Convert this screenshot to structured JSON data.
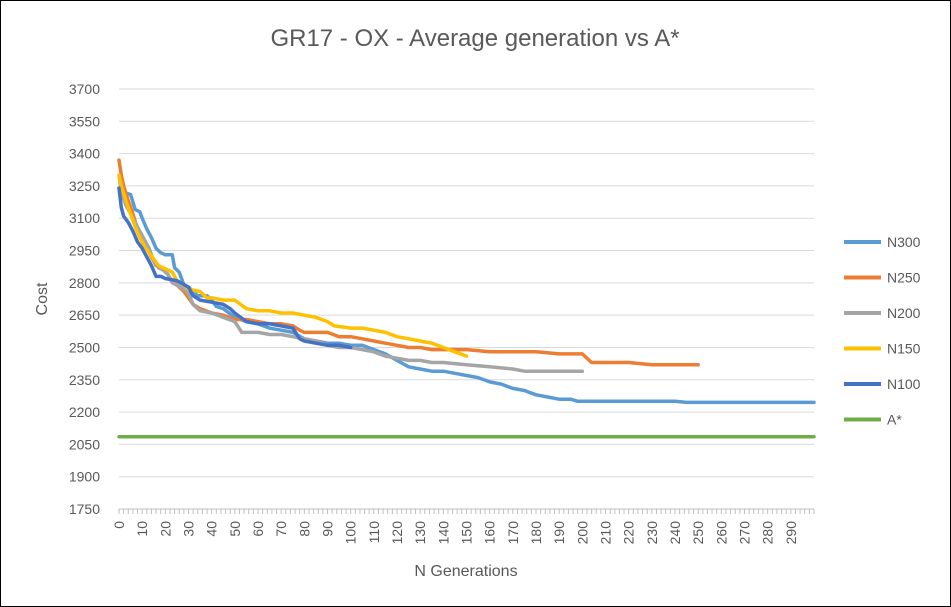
{
  "chart_data": {
    "type": "line",
    "title": "GR17 - OX - Average generation vs A*",
    "xlabel": "N Generations",
    "ylabel": "Cost",
    "xlim": [
      0,
      300
    ],
    "ylim": [
      1750,
      3700
    ],
    "y_ticks": [
      1750,
      1900,
      2050,
      2200,
      2350,
      2500,
      2650,
      2800,
      2950,
      3100,
      3250,
      3400,
      3550,
      3700
    ],
    "x_ticks": [
      0,
      10,
      20,
      30,
      40,
      50,
      60,
      70,
      80,
      90,
      100,
      110,
      120,
      130,
      140,
      150,
      160,
      170,
      180,
      190,
      200,
      210,
      220,
      230,
      240,
      250,
      260,
      270,
      280,
      290
    ],
    "grid": true,
    "legend_position": "right",
    "series": [
      {
        "name": "N300",
        "color": "#5B9BD5",
        "points": [
          [
            0,
            3240
          ],
          [
            2,
            3220
          ],
          [
            5,
            3210
          ],
          [
            7,
            3140
          ],
          [
            9,
            3130
          ],
          [
            10,
            3100
          ],
          [
            12,
            3050
          ],
          [
            14,
            3010
          ],
          [
            16,
            2960
          ],
          [
            18,
            2940
          ],
          [
            20,
            2930
          ],
          [
            23,
            2930
          ],
          [
            24,
            2870
          ],
          [
            26,
            2850
          ],
          [
            28,
            2790
          ],
          [
            30,
            2780
          ],
          [
            32,
            2760
          ],
          [
            34,
            2740
          ],
          [
            38,
            2740
          ],
          [
            40,
            2720
          ],
          [
            42,
            2690
          ],
          [
            45,
            2680
          ],
          [
            50,
            2640
          ],
          [
            55,
            2620
          ],
          [
            60,
            2610
          ],
          [
            65,
            2590
          ],
          [
            70,
            2580
          ],
          [
            75,
            2570
          ],
          [
            80,
            2540
          ],
          [
            85,
            2530
          ],
          [
            90,
            2520
          ],
          [
            95,
            2520
          ],
          [
            100,
            2510
          ],
          [
            105,
            2510
          ],
          [
            110,
            2490
          ],
          [
            115,
            2470
          ],
          [
            120,
            2440
          ],
          [
            125,
            2410
          ],
          [
            130,
            2400
          ],
          [
            135,
            2390
          ],
          [
            140,
            2390
          ],
          [
            145,
            2380
          ],
          [
            150,
            2370
          ],
          [
            155,
            2360
          ],
          [
            160,
            2340
          ],
          [
            165,
            2330
          ],
          [
            170,
            2310
          ],
          [
            175,
            2300
          ],
          [
            180,
            2280
          ],
          [
            185,
            2270
          ],
          [
            190,
            2260
          ],
          [
            195,
            2260
          ],
          [
            198,
            2250
          ],
          [
            200,
            2250
          ],
          [
            220,
            2250
          ],
          [
            240,
            2250
          ],
          [
            245,
            2245
          ],
          [
            260,
            2245
          ],
          [
            280,
            2245
          ],
          [
            300,
            2245
          ]
        ]
      },
      {
        "name": "N250",
        "color": "#ED7D31",
        "points": [
          [
            0,
            3370
          ],
          [
            1,
            3300
          ],
          [
            2,
            3250
          ],
          [
            4,
            3180
          ],
          [
            6,
            3120
          ],
          [
            8,
            3050
          ],
          [
            10,
            3000
          ],
          [
            12,
            2960
          ],
          [
            14,
            2920
          ],
          [
            16,
            2880
          ],
          [
            18,
            2870
          ],
          [
            20,
            2860
          ],
          [
            22,
            2820
          ],
          [
            24,
            2800
          ],
          [
            26,
            2780
          ],
          [
            28,
            2760
          ],
          [
            30,
            2730
          ],
          [
            32,
            2700
          ],
          [
            35,
            2680
          ],
          [
            40,
            2660
          ],
          [
            45,
            2650
          ],
          [
            50,
            2630
          ],
          [
            55,
            2630
          ],
          [
            60,
            2620
          ],
          [
            65,
            2610
          ],
          [
            70,
            2610
          ],
          [
            75,
            2600
          ],
          [
            78,
            2580
          ],
          [
            80,
            2570
          ],
          [
            90,
            2570
          ],
          [
            95,
            2550
          ],
          [
            100,
            2550
          ],
          [
            105,
            2540
          ],
          [
            110,
            2530
          ],
          [
            115,
            2520
          ],
          [
            120,
            2510
          ],
          [
            125,
            2500
          ],
          [
            130,
            2500
          ],
          [
            135,
            2490
          ],
          [
            140,
            2490
          ],
          [
            150,
            2490
          ],
          [
            160,
            2480
          ],
          [
            170,
            2480
          ],
          [
            180,
            2480
          ],
          [
            190,
            2470
          ],
          [
            200,
            2470
          ],
          [
            204,
            2430
          ],
          [
            210,
            2430
          ],
          [
            220,
            2430
          ],
          [
            230,
            2420
          ],
          [
            240,
            2420
          ],
          [
            250,
            2420
          ]
        ]
      },
      {
        "name": "N200",
        "color": "#A5A5A5",
        "points": [
          [
            0,
            3300
          ],
          [
            1,
            3220
          ],
          [
            3,
            3160
          ],
          [
            5,
            3120
          ],
          [
            7,
            3080
          ],
          [
            9,
            3040
          ],
          [
            11,
            3000
          ],
          [
            13,
            2960
          ],
          [
            15,
            2900
          ],
          [
            17,
            2870
          ],
          [
            19,
            2860
          ],
          [
            21,
            2840
          ],
          [
            23,
            2800
          ],
          [
            25,
            2790
          ],
          [
            28,
            2770
          ],
          [
            30,
            2750
          ],
          [
            32,
            2700
          ],
          [
            35,
            2670
          ],
          [
            40,
            2660
          ],
          [
            45,
            2640
          ],
          [
            50,
            2620
          ],
          [
            53,
            2570
          ],
          [
            60,
            2570
          ],
          [
            65,
            2560
          ],
          [
            70,
            2560
          ],
          [
            75,
            2550
          ],
          [
            80,
            2540
          ],
          [
            85,
            2530
          ],
          [
            90,
            2510
          ],
          [
            95,
            2500
          ],
          [
            100,
            2500
          ],
          [
            105,
            2490
          ],
          [
            110,
            2480
          ],
          [
            115,
            2460
          ],
          [
            120,
            2450
          ],
          [
            125,
            2440
          ],
          [
            130,
            2440
          ],
          [
            135,
            2430
          ],
          [
            140,
            2430
          ],
          [
            150,
            2420
          ],
          [
            160,
            2410
          ],
          [
            170,
            2400
          ],
          [
            175,
            2390
          ],
          [
            180,
            2390
          ],
          [
            190,
            2390
          ],
          [
            200,
            2390
          ]
        ]
      },
      {
        "name": "N150",
        "color": "#FFC000",
        "points": [
          [
            0,
            3300
          ],
          [
            1,
            3250
          ],
          [
            3,
            3180
          ],
          [
            5,
            3120
          ],
          [
            7,
            3060
          ],
          [
            9,
            3010
          ],
          [
            11,
            2970
          ],
          [
            13,
            2940
          ],
          [
            15,
            2910
          ],
          [
            17,
            2880
          ],
          [
            19,
            2870
          ],
          [
            21,
            2860
          ],
          [
            23,
            2850
          ],
          [
            25,
            2810
          ],
          [
            28,
            2790
          ],
          [
            30,
            2770
          ],
          [
            35,
            2760
          ],
          [
            38,
            2730
          ],
          [
            40,
            2730
          ],
          [
            45,
            2720
          ],
          [
            50,
            2720
          ],
          [
            55,
            2680
          ],
          [
            60,
            2670
          ],
          [
            65,
            2670
          ],
          [
            70,
            2660
          ],
          [
            75,
            2660
          ],
          [
            80,
            2650
          ],
          [
            85,
            2640
          ],
          [
            90,
            2620
          ],
          [
            93,
            2600
          ],
          [
            100,
            2590
          ],
          [
            105,
            2590
          ],
          [
            110,
            2580
          ],
          [
            115,
            2570
          ],
          [
            120,
            2550
          ],
          [
            125,
            2540
          ],
          [
            130,
            2530
          ],
          [
            135,
            2520
          ],
          [
            140,
            2500
          ],
          [
            145,
            2480
          ],
          [
            150,
            2460
          ]
        ]
      },
      {
        "name": "N100",
        "color": "#4472C4",
        "points": [
          [
            0,
            3240
          ],
          [
            1,
            3150
          ],
          [
            2,
            3110
          ],
          [
            4,
            3080
          ],
          [
            6,
            3040
          ],
          [
            8,
            2990
          ],
          [
            10,
            2960
          ],
          [
            12,
            2920
          ],
          [
            14,
            2880
          ],
          [
            16,
            2830
          ],
          [
            18,
            2830
          ],
          [
            20,
            2820
          ],
          [
            25,
            2810
          ],
          [
            30,
            2780
          ],
          [
            32,
            2740
          ],
          [
            35,
            2720
          ],
          [
            40,
            2710
          ],
          [
            45,
            2700
          ],
          [
            48,
            2680
          ],
          [
            50,
            2660
          ],
          [
            55,
            2620
          ],
          [
            60,
            2610
          ],
          [
            65,
            2610
          ],
          [
            70,
            2600
          ],
          [
            75,
            2590
          ],
          [
            78,
            2540
          ],
          [
            80,
            2530
          ],
          [
            85,
            2520
          ],
          [
            90,
            2510
          ],
          [
            95,
            2510
          ],
          [
            100,
            2500
          ]
        ]
      },
      {
        "name": "A*",
        "color": "#70AD47",
        "points": [
          [
            0,
            2085
          ],
          [
            300,
            2085
          ]
        ]
      }
    ]
  }
}
